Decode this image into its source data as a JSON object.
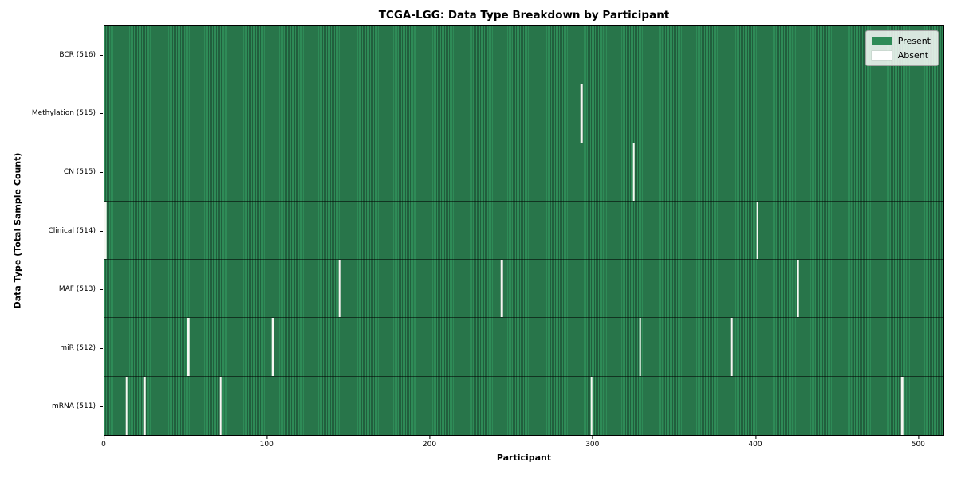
{
  "figure": {
    "title": "TCGA-LGG: Data Type Breakdown by Participant",
    "xlabel": "Participant",
    "ylabel": "Data Type (Total Sample Count)"
  },
  "legend": {
    "items": [
      {
        "label": "Present",
        "color": "#2e8b57"
      },
      {
        "label": "Absent",
        "color": "#ffffff"
      }
    ]
  },
  "chart_data": {
    "type": "heatmap",
    "title": "TCGA-LGG: Data Type Breakdown by Participant",
    "xlabel": "Participant",
    "ylabel": "Data Type (Total Sample Count)",
    "legend_position": "upper right",
    "grid": false,
    "n_participants": 516,
    "xlim": [
      0,
      516
    ],
    "x_ticks": [
      0,
      100,
      200,
      300,
      400,
      500
    ],
    "rows": [
      {
        "label": "BCR (516)",
        "data_type": "BCR",
        "present_count": 516,
        "absent_participant_indices": []
      },
      {
        "label": "Methylation (515)",
        "data_type": "Methylation",
        "present_count": 515,
        "absent_participant_indices": [
          293
        ]
      },
      {
        "label": "CN (515)",
        "data_type": "CN",
        "present_count": 515,
        "absent_participant_indices": [
          325
        ]
      },
      {
        "label": "Clinical (514)",
        "data_type": "Clinical",
        "present_count": 514,
        "absent_participant_indices": [
          0,
          401
        ]
      },
      {
        "label": "MAF (513)",
        "data_type": "MAF",
        "present_count": 513,
        "absent_participant_indices": [
          144,
          244,
          426
        ]
      },
      {
        "label": "miR (512)",
        "data_type": "miR",
        "present_count": 512,
        "absent_participant_indices": [
          51,
          103,
          329,
          385
        ]
      },
      {
        "label": "mRNA (511)",
        "data_type": "mRNA",
        "present_count": 511,
        "absent_participant_indices": [
          13,
          24,
          71,
          299,
          490
        ]
      }
    ],
    "colors": {
      "present": "#2e8b57",
      "present_stripe": "#215f3d",
      "absent": "#f7f7f3"
    }
  }
}
